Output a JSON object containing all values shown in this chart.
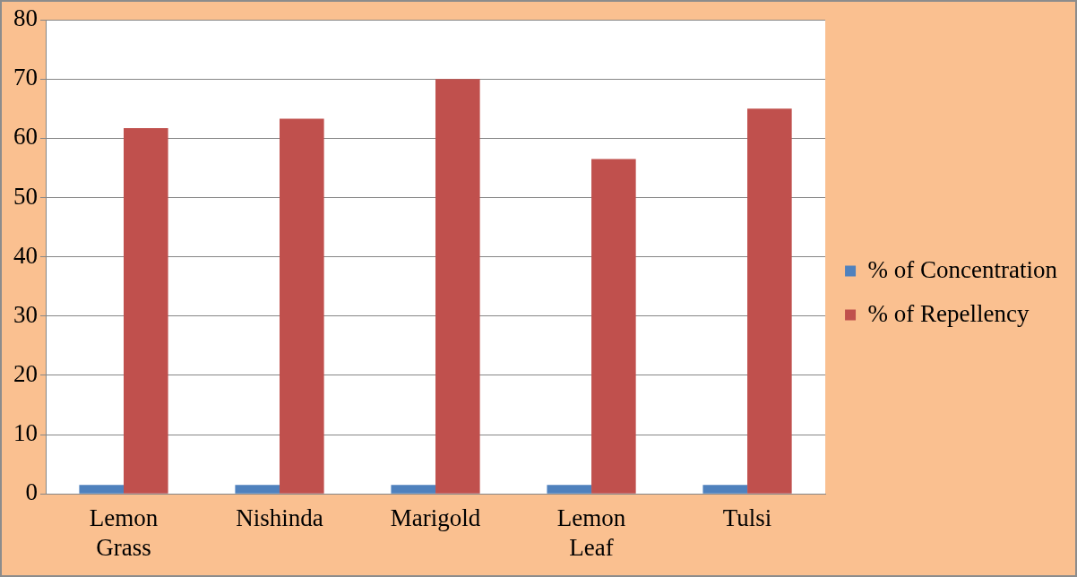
{
  "chart_data": {
    "type": "bar",
    "categories": [
      "Lemon Grass",
      "Nishinda",
      "Marigold",
      "Lemon Leaf",
      "Tulsi"
    ],
    "series": [
      {
        "name": "% of Concentration",
        "color": "#4f81bd",
        "values": [
          1.5,
          1.5,
          1.5,
          1.5,
          1.5
        ]
      },
      {
        "name": "% of Repellency",
        "color": "#c0504d",
        "values": [
          61.7,
          63.3,
          70,
          56.5,
          65
        ]
      }
    ],
    "ylim": [
      0,
      80
    ],
    "yticks": [
      0,
      10,
      20,
      30,
      40,
      50,
      60,
      70,
      80
    ],
    "grid": "y",
    "legend": "right"
  }
}
